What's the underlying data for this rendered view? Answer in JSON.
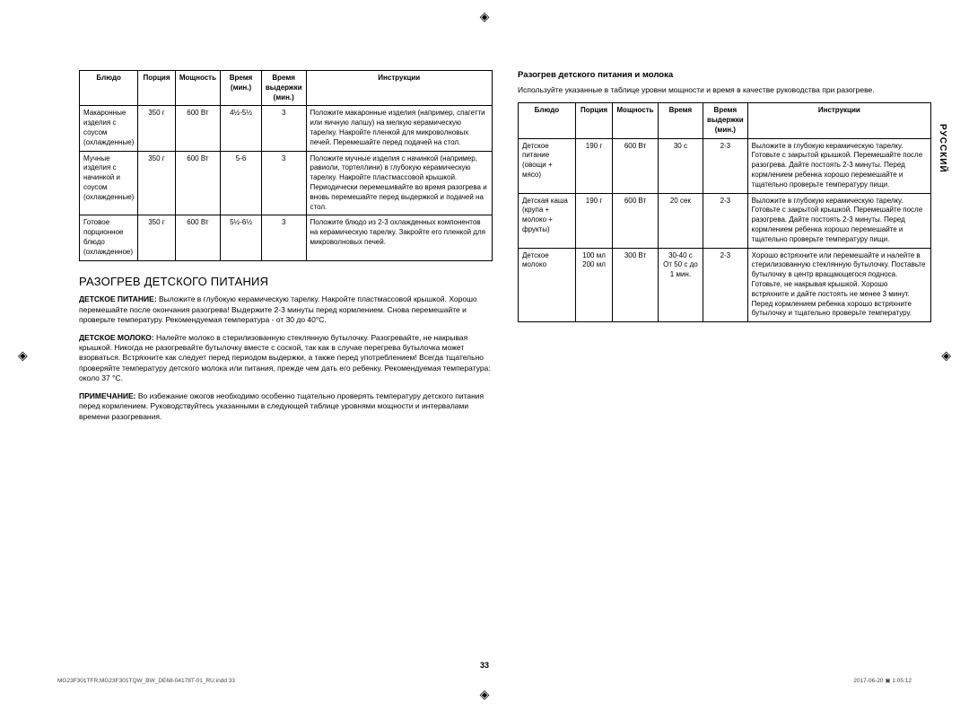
{
  "language_tab": "РУССКИЙ",
  "page_number": "33",
  "footer_left": "MG23F301TFR,MG23F301TQW_BW_DE68-04178T-01_RU.indd   33",
  "footer_right": "2017-06-20   ▣ 1:05:12",
  "registration_mark": "◈",
  "crop_mark": "⌐",
  "left": {
    "table": {
      "headers": [
        "Блюдо",
        "Порция",
        "Мощность",
        "Время (мин.)",
        "Время выдержки (мин.)",
        "Инструкции"
      ],
      "rows": [
        {
          "dish": "Макаронные изделия с соусом (охлажденные)",
          "portion": "350 г",
          "power": "600 Вт",
          "time": "4½-5½",
          "stand": "3",
          "instr": "Положите макаронные изделия (например, спагетти или яичную лапшу) на мелкую керамическую тарелку. Накройте пленкой для микроволновых печей. Перемешайте перед подачей на стол."
        },
        {
          "dish": "Мучные изделия с начинкой и соусом (охлажденные)",
          "portion": "350 г",
          "power": "600 Вт",
          "time": "5-6",
          "stand": "3",
          "instr": "Положите мучные изделия с начинкой (например, равиоли, тортеллини) в глубокую керамическую тарелку. Накройте пластмассовой крышкой. Периодически перемешивайте во время разогрева и вновь перемешайте перед выдержкой и подачей на стол."
        },
        {
          "dish": "Готовое порционное блюдо (охлажденное)",
          "portion": "350 г",
          "power": "600 Вт",
          "time": "5½-6½",
          "stand": "3",
          "instr": "Положите блюдо из 2-3 охлажденных компонентов на керамическую тарелку. Закройте его пленкой для микроволновых печей."
        }
      ]
    },
    "section_title": "РАЗОГРЕВ ДЕТСКОГО ПИТАНИЯ",
    "p1_label": "ДЕТСКОЕ ПИТАНИЕ:",
    "p1": " Выложите в глубокую керамическую тарелку. Накройте пластмассовой крышкой. Хорошо перемешайте после окончания разогрева! Выдержите 2-3 минуты перед кормлением. Снова перемешайте и проверьте температуру. Рекомендуемая температура - от 30 до 40°C.",
    "p2_label": "ДЕТСКОЕ МОЛОКО:",
    "p2": " Налейте молоко в стерилизованную стеклянную бутылочку. Разогревайте, не накрывая крышкой. Никогда не разогревайте бутылочку вместе с соской, так как в случае перегрева бутылочка может взорваться. Встряхните как следует перед периодом выдержки, а также перед употреблением! Всегда тщательно проверяйте температуру детского молока или питания, прежде чем дать его ребенку. Рекомендуемая температура: около 37 °C.",
    "p3_label": "ПРИМЕЧАНИЕ:",
    "p3": " Во избежание ожогов необходимо особенно тщательно проверять температуру детского питания перед кормлением. Руководствуйтесь указанными в следующей таблице уровнями мощности и интервалами времени разогревания."
  },
  "right": {
    "sub_title": "Разогрев детского питания и молока",
    "intro": "Используйте указанные в таблице уровни мощности и время в качестве руководства при разогреве.",
    "table": {
      "headers": [
        "Блюдо",
        "Порция",
        "Мощность",
        "Время",
        "Время выдержки (мин.)",
        "Инструкции"
      ],
      "rows": [
        {
          "dish": "Детское питание (овощи + мясо)",
          "portion": "190 г",
          "power": "600 Вт",
          "time": "30 с",
          "stand": "2-3",
          "instr": "Выложите в глубокую керамическую тарелку. Готовьте с закрытой крышкой. Перемешайте после разогрева. Дайте постоять 2-3 минуты. Перед кормлением ребенка хорошо перемешайте и тщательно проверьте температуру пищи."
        },
        {
          "dish": "Детская каша (крупа + молоко + фрукты)",
          "portion": "190 г",
          "power": "600 Вт",
          "time": "20 сек",
          "stand": "2-3",
          "instr": "Выложите в глубокую керамическую тарелку. Готовьте с закрытой крышкой. Перемешайте после разогрева. Дайте постоять 2-3 минуты. Перед кормлением ребенка хорошо перемешайте и тщательно проверьте температуру пищи."
        },
        {
          "dish": "Детское молоко",
          "portion": "100 мл\n200 мл",
          "power": "300 Вт",
          "time": "30-40 с\nОт 50 с до 1 мин.",
          "stand": "2-3",
          "instr": "Хорошо встряхните или перемешайте и налейте в стерилизованную стеклянную бутылочку. Поставьте бутылочку в центр вращающегося подноса. Готовьте, не накрывая крышкой. Хорошо встряхните и дайте постоять не менее 3 минут. Перед кормлением ребенка хорошо встряхните бутылочку и тщательно проверьте температуру."
        }
      ]
    }
  }
}
